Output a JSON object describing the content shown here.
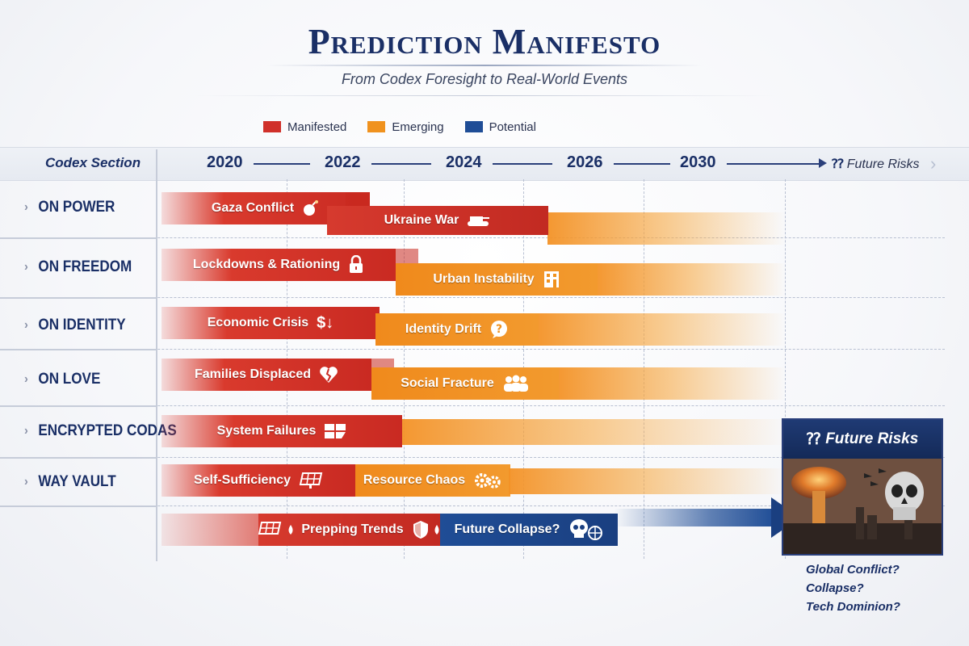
{
  "title": "Prediction Manifesto",
  "subtitle": "From Codex Foresight to Real-World Events",
  "legend": [
    {
      "label": "Manifested",
      "color": "#d0302a"
    },
    {
      "label": "Emerging",
      "color": "#f0921e"
    },
    {
      "label": "Potential",
      "color": "#1f4d96"
    }
  ],
  "header": {
    "codex_section": "Codex Section",
    "years": [
      "2020",
      "2022",
      "2024",
      "2026",
      "2030"
    ],
    "future_marker": "⁇",
    "future_label": "Future Risks"
  },
  "sections": [
    "ON POWER",
    "ON FREEDOM",
    "ON IDENTITY",
    "ON LOVE",
    "ENCRYPTED CODAS",
    "WAY VAULT"
  ],
  "events": {
    "gaza": {
      "label": "Gaza Conflict",
      "status": "Manifested",
      "icon": "bomb-icon"
    },
    "ukraine": {
      "label": "Ukraine War",
      "status": "Manifested",
      "icon": "tank-icon"
    },
    "lockdowns": {
      "label": "Lockdowns & Rationing",
      "status": "Manifested",
      "icon": "lock-icon"
    },
    "urban": {
      "label": "Urban Instability",
      "status": "Emerging",
      "icon": "building-icon"
    },
    "economic": {
      "label": "Economic Crisis",
      "status": "Manifested",
      "icon": "dollar-down-icon"
    },
    "identity": {
      "label": "Identity Drift",
      "status": "Emerging",
      "icon": "question-bubble-icon"
    },
    "families": {
      "label": "Families Displaced",
      "status": "Manifested",
      "icon": "broken-heart-icon"
    },
    "social": {
      "label": "Social Fracture",
      "status": "Emerging",
      "icon": "people-icon"
    },
    "system": {
      "label": "System Failures",
      "status": "Manifested",
      "icon": "broken-system-icon"
    },
    "self": {
      "label": "Self-Sufficiency",
      "status": "Manifested",
      "icon": "solar-panel-icon"
    },
    "resource": {
      "label": "Resource Chaos",
      "status": "Emerging",
      "icon": "gears-icon"
    },
    "prepping": {
      "label": "Prepping Trends",
      "status": "Manifested",
      "icon": "shield-icon"
    },
    "collapse": {
      "label": "Future Collapse?",
      "status": "Potential",
      "icon": "skull-globe-icon"
    }
  },
  "future_risks": {
    "title": "Future Risks",
    "marker": "⁇",
    "items": [
      "Global Conflict?",
      "Collapse?",
      "Tech Dominion?"
    ]
  }
}
